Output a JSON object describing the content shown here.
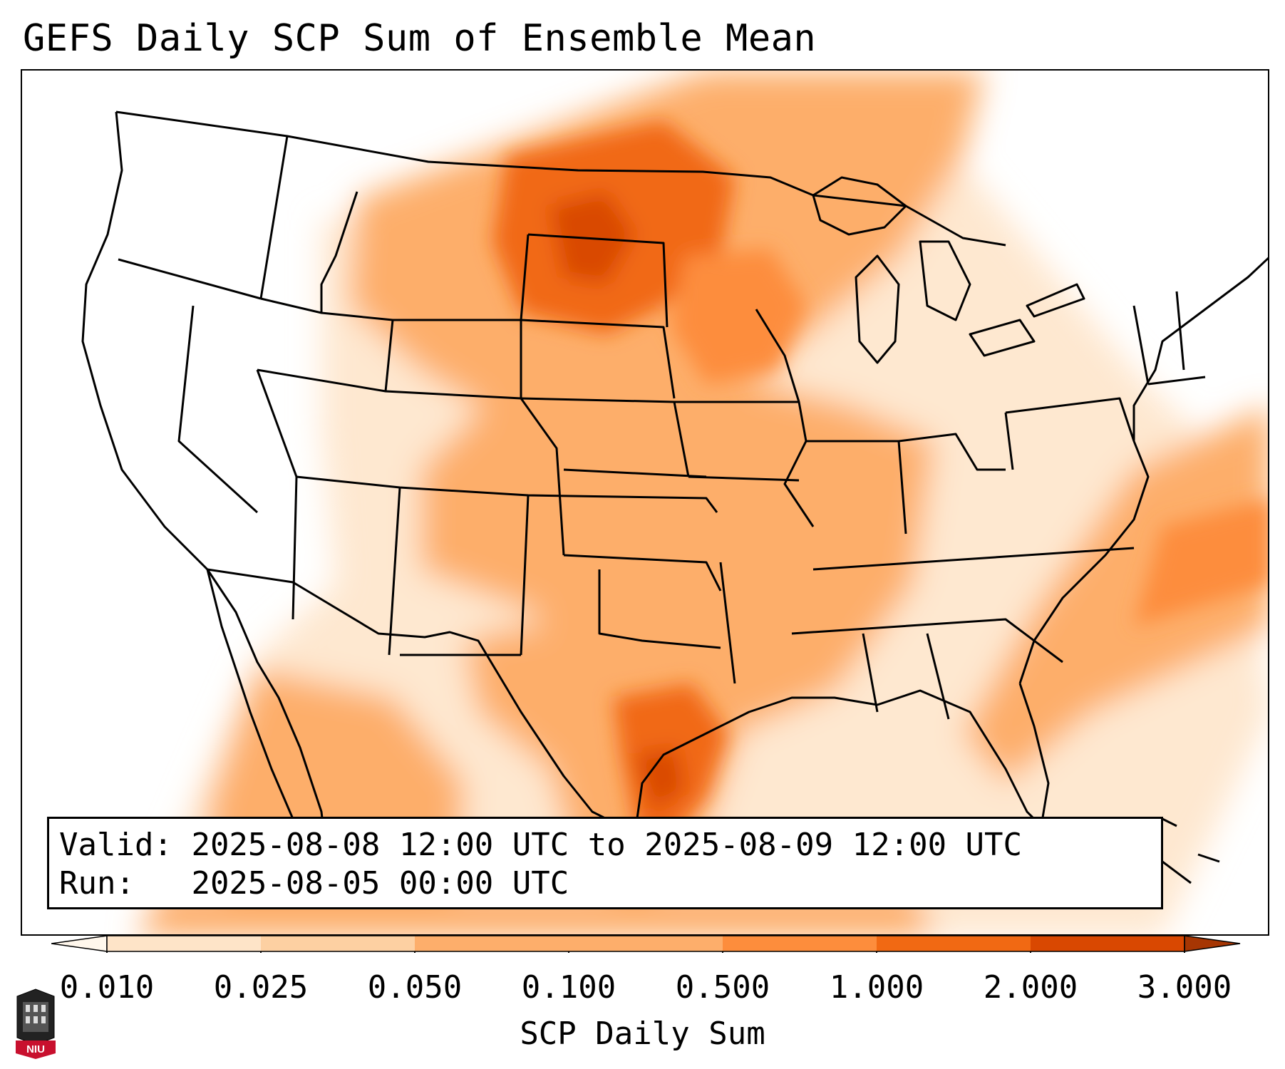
{
  "title": "GEFS Daily SCP Sum of Ensemble Mean",
  "info": {
    "valid_label": "Valid:",
    "valid_value": "2025-08-08 12:00 UTC to 2025-08-09 12:00 UTC",
    "run_label": "Run:",
    "run_value": "2025-08-05 00:00 UTC"
  },
  "colorbar": {
    "label": "SCP Daily Sum",
    "ticks": [
      "0.010",
      "0.025",
      "0.050",
      "0.100",
      "0.500",
      "1.000",
      "2.000",
      "3.000"
    ],
    "colors": [
      "#fff7ec",
      "#fee4c8",
      "#fdd0a2",
      "#fdae6b",
      "#fd8d3c",
      "#f16913",
      "#d94801",
      "#a63603"
    ],
    "extend": "both"
  },
  "logo": {
    "text": "NIU"
  },
  "colors": {
    "border": "#000000",
    "background": "#ffffff"
  }
}
